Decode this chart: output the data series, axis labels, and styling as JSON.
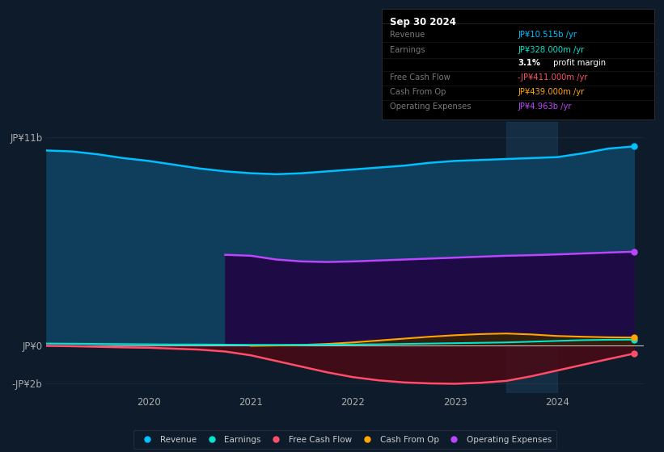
{
  "background_color": "#0d1b2a",
  "plot_bg_color": "#0d1b2a",
  "ylabel_top": "JP¥11b",
  "ylabel_zero": "JP¥0",
  "ylabel_bot": "-JP¥2b",
  "x_labels": [
    "2020",
    "2021",
    "2022",
    "2023",
    "2024"
  ],
  "x_tick_pos": [
    2020.0,
    2021.0,
    2022.0,
    2023.0,
    2024.0
  ],
  "info_box_title": "Sep 30 2024",
  "info_rows": [
    {
      "label": "Revenue",
      "value": "JP¥10.515b /yr",
      "vcolor": "#00bfff"
    },
    {
      "label": "Earnings",
      "value": "JP¥328.000m /yr",
      "vcolor": "#00e5cc"
    },
    {
      "label": "",
      "value": "3.1% profit margin",
      "vcolor": "#ffffff",
      "special": true
    },
    {
      "label": "Free Cash Flow",
      "value": "-JP¥411.000m /yr",
      "vcolor": "#ff4d6a"
    },
    {
      "label": "Cash From Op",
      "value": "JP¥439.000m /yr",
      "vcolor": "#ffa500"
    },
    {
      "label": "Operating Expenses",
      "value": "JP¥4.963b /yr",
      "vcolor": "#bb44ff"
    }
  ],
  "legend_items": [
    {
      "label": "Revenue",
      "color": "#00bfff"
    },
    {
      "label": "Earnings",
      "color": "#00e5cc"
    },
    {
      "label": "Free Cash Flow",
      "color": "#ff4d6a"
    },
    {
      "label": "Cash From Op",
      "color": "#ffa500"
    },
    {
      "label": "Operating Expenses",
      "color": "#bb44ff"
    }
  ],
  "series": {
    "revenue": {
      "color": "#00bfff",
      "fill": "#0f3d5c",
      "x": [
        2019.0,
        2019.25,
        2019.5,
        2019.75,
        2020.0,
        2020.25,
        2020.5,
        2020.75,
        2021.0,
        2021.25,
        2021.5,
        2021.75,
        2022.0,
        2022.25,
        2022.5,
        2022.75,
        2023.0,
        2023.25,
        2023.5,
        2023.75,
        2024.0,
        2024.25,
        2024.5,
        2024.75
      ],
      "y": [
        10.3,
        10.25,
        10.1,
        9.9,
        9.75,
        9.55,
        9.35,
        9.2,
        9.1,
        9.05,
        9.1,
        9.2,
        9.3,
        9.4,
        9.5,
        9.65,
        9.75,
        9.8,
        9.85,
        9.9,
        9.95,
        10.15,
        10.4,
        10.515
      ]
    },
    "op_expenses": {
      "color": "#bb44ff",
      "fill": "#2a0a55",
      "x": [
        2020.75,
        2021.0,
        2021.25,
        2021.5,
        2021.75,
        2022.0,
        2022.25,
        2022.5,
        2022.75,
        2023.0,
        2023.25,
        2023.5,
        2023.75,
        2024.0,
        2024.25,
        2024.5,
        2024.75
      ],
      "y": [
        4.8,
        4.75,
        4.55,
        4.45,
        4.42,
        4.45,
        4.5,
        4.55,
        4.6,
        4.65,
        4.7,
        4.75,
        4.78,
        4.82,
        4.87,
        4.92,
        4.963
      ]
    },
    "earnings": {
      "color": "#00e5cc",
      "x": [
        2019.0,
        2019.25,
        2019.5,
        2019.75,
        2020.0,
        2020.25,
        2020.5,
        2020.75,
        2021.0,
        2021.25,
        2021.5,
        2021.75,
        2022.0,
        2022.25,
        2022.5,
        2022.75,
        2023.0,
        2023.25,
        2023.5,
        2023.75,
        2024.0,
        2024.25,
        2024.5,
        2024.75
      ],
      "y": [
        0.12,
        0.11,
        0.1,
        0.09,
        0.08,
        0.07,
        0.07,
        0.06,
        0.05,
        0.05,
        0.05,
        0.06,
        0.07,
        0.08,
        0.1,
        0.12,
        0.14,
        0.16,
        0.18,
        0.22,
        0.26,
        0.3,
        0.32,
        0.328
      ]
    },
    "free_cash_flow": {
      "color": "#ff4d6a",
      "fill": "#5a0a1a",
      "x": [
        2019.0,
        2019.25,
        2019.5,
        2019.75,
        2020.0,
        2020.25,
        2020.5,
        2020.75,
        2021.0,
        2021.25,
        2021.5,
        2021.75,
        2022.0,
        2022.25,
        2022.5,
        2022.75,
        2023.0,
        2023.25,
        2023.5,
        2023.75,
        2024.0,
        2024.25,
        2024.5,
        2024.75
      ],
      "y": [
        0.0,
        -0.02,
        -0.05,
        -0.08,
        -0.1,
        -0.15,
        -0.2,
        -0.3,
        -0.5,
        -0.8,
        -1.1,
        -1.4,
        -1.65,
        -1.82,
        -1.93,
        -1.98,
        -2.0,
        -1.95,
        -1.85,
        -1.6,
        -1.3,
        -1.0,
        -0.7,
        -0.411
      ]
    },
    "cash_from_op": {
      "color": "#ffa500",
      "fill": "#5a3a00",
      "x": [
        2021.0,
        2021.25,
        2021.5,
        2021.75,
        2022.0,
        2022.25,
        2022.5,
        2022.75,
        2023.0,
        2023.25,
        2023.5,
        2023.75,
        2024.0,
        2024.25,
        2024.5,
        2024.75
      ],
      "y": [
        0.0,
        0.02,
        0.05,
        0.1,
        0.18,
        0.28,
        0.38,
        0.48,
        0.56,
        0.62,
        0.65,
        0.6,
        0.52,
        0.48,
        0.45,
        0.439
      ]
    }
  },
  "highlight_x_start": 2023.5,
  "highlight_x_end": 2024.0,
  "ylim": [
    -2.5,
    11.8
  ],
  "xlim": [
    2019.0,
    2024.85
  ]
}
